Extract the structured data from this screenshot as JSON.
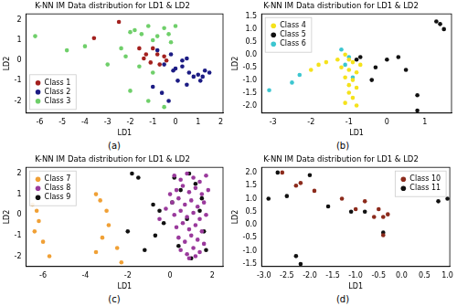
{
  "chart_data": [
    {
      "type": "scatter",
      "title": "K-NN IM Data distribution for LD1 & LD2",
      "x_label": "LD1",
      "y_label": "LD2",
      "caption": "(a)",
      "xlim": [
        -6.6,
        2.1
      ],
      "ylim": [
        -2.6,
        2.3
      ],
      "xticks": [
        -6,
        -5,
        -4,
        -3,
        -2,
        -1,
        0,
        1,
        2
      ],
      "yticks": [
        -2,
        -1,
        0,
        1,
        2
      ],
      "grid": false,
      "legend": "lower left",
      "marker": "circle",
      "series": [
        {
          "name": "Class 1",
          "color": "#a3201e",
          "x": [
            -3.6,
            -2.5,
            -1.6,
            -1.3,
            -1.0,
            -0.8,
            -0.5,
            -1.1,
            -0.7,
            -0.4,
            -1.4
          ],
          "y": [
            1.1,
            1.9,
            0.6,
            0.3,
            0.6,
            0.3,
            0.2,
            -0.1,
            -0.2,
            0.0,
            0.1
          ]
        },
        {
          "name": "Class 2",
          "color": "#1c1c84",
          "x": [
            -0.8,
            -0.5,
            -0.2,
            0.0,
            0.3,
            0.5,
            0.6,
            0.8,
            1.0,
            1.2,
            1.3,
            1.5,
            -1.0,
            -0.6,
            -0.3,
            0.1,
            0.5,
            1.1,
            0.3,
            -0.1
          ],
          "y": [
            0.5,
            -0.2,
            0.3,
            -0.4,
            -0.3,
            0.1,
            -0.6,
            -0.8,
            -0.7,
            -0.8,
            -0.5,
            -0.6,
            -1.3,
            -1.6,
            -2.0,
            -1.0,
            -1.2,
            -1.0,
            0.0,
            -0.5
          ]
        },
        {
          "name": "Class 3",
          "color": "#6fcf6a",
          "x": [
            -6.2,
            -4.8,
            -4.0,
            -3.0,
            -2.0,
            -1.8,
            -1.5,
            -1.2,
            -1.0,
            -0.8,
            -0.5,
            0.0,
            -0.3,
            -2.2,
            -1.6,
            -1.0,
            -2.0,
            -1.2,
            -0.5,
            -2.4,
            -0.2
          ],
          "y": [
            1.2,
            0.5,
            0.7,
            -0.2,
            1.4,
            1.5,
            1.3,
            1.7,
            1.0,
            1.2,
            1.6,
            1.7,
            1.3,
            0.2,
            -0.3,
            -0.6,
            -1.5,
            -2.0,
            -2.3,
            0.6,
            0.9
          ]
        }
      ]
    },
    {
      "type": "scatter",
      "title": "K-NN IM Data distribution for LD1 & LD2",
      "x_label": "LD1",
      "y_label": "LD2",
      "caption": "(b)",
      "xlim": [
        -3.3,
        1.7
      ],
      "ylim": [
        -2.3,
        1.6
      ],
      "xticks": [
        -3,
        -2,
        -1,
        0,
        1
      ],
      "yticks": [
        {
          "value": -2,
          "label": "-2.0"
        },
        -1.5,
        {
          "value": -1,
          "label": "-1.0"
        },
        -0.5,
        {
          "value": 0,
          "label": "0.0"
        },
        0.5,
        {
          "value": 1,
          "label": "1.0"
        },
        1.5
      ],
      "grid": false,
      "legend": "upper left",
      "marker": "circle",
      "series": [
        {
          "name": "Class 4",
          "color": "#f5e21b",
          "x": [
            -2.0,
            -1.8,
            -1.6,
            -1.3,
            -1.1,
            -1.0,
            -0.9,
            -1.0,
            -0.8,
            -1.1,
            -0.9,
            -1.0,
            -0.8,
            -1.0,
            -0.9,
            -0.8,
            -1.1,
            -0.7,
            -1.2
          ],
          "y": [
            -0.6,
            -0.4,
            -0.3,
            -0.2,
            0.0,
            -0.2,
            -0.3,
            -0.6,
            -0.7,
            -0.9,
            -1.0,
            -1.2,
            -1.3,
            -1.5,
            -1.7,
            -2.0,
            -1.9,
            -0.4,
            -0.5
          ]
        },
        {
          "name": "Class 5",
          "color": "#111111",
          "x": [
            -0.7,
            -0.3,
            0.0,
            0.3,
            0.5,
            0.8,
            0.8,
            1.3,
            1.4,
            1.5,
            -0.4,
            -0.8
          ],
          "y": [
            -0.1,
            -0.5,
            -0.2,
            -0.1,
            -0.6,
            -1.6,
            -2.2,
            1.3,
            1.2,
            1.0,
            -1.0,
            -0.2
          ]
        },
        {
          "name": "Class 6",
          "color": "#3cc6d0",
          "x": [
            -3.1,
            -2.5,
            -2.3,
            -1.2,
            -1.0,
            -1.1,
            -0.9
          ],
          "y": [
            -1.4,
            -1.1,
            -0.8,
            0.2,
            -0.1,
            -0.4,
            -0.9
          ]
        }
      ]
    },
    {
      "type": "scatter",
      "title": "K-NN IM Data distribution for LD1 & LD2",
      "x_label": "LD1",
      "y_label": "LD2",
      "caption": "(c)",
      "xlim": [
        -6.8,
        2.5
      ],
      "ylim": [
        -2.5,
        2.3
      ],
      "xticks": [
        -6,
        -4,
        -2,
        0,
        2
      ],
      "yticks": [
        -2,
        -1,
        0,
        1,
        2
      ],
      "grid": false,
      "legend": "upper left",
      "marker": "circle",
      "series": [
        {
          "name": "Class 7",
          "color": "#f0a035",
          "x": [
            -6.5,
            -6.3,
            -6.2,
            -6.4,
            -6.0,
            -5.7,
            -3.5,
            -3.3,
            -3.0,
            -2.9,
            -3.2,
            -2.5,
            -2.3,
            -3.5
          ],
          "y": [
            0.5,
            0.2,
            -0.3,
            -0.8,
            -1.3,
            -2.0,
            1.0,
            0.7,
            0.2,
            -0.5,
            -1.1,
            -1.6,
            -2.3,
            -1.8
          ]
        },
        {
          "name": "Class 8",
          "color": "#9a3a9c",
          "x": [
            0.2,
            0.5,
            0.8,
            1.1,
            1.4,
            1.7,
            0.3,
            0.6,
            0.9,
            1.2,
            1.5,
            1.8,
            0.1,
            0.4,
            0.7,
            1.0,
            1.3,
            1.6,
            0.2,
            0.5,
            0.8,
            1.1,
            1.4,
            1.7,
            0.3,
            0.6,
            0.9,
            1.2,
            1.5,
            0.4,
            0.7,
            1.0,
            1.3,
            1.6,
            0.5,
            0.8,
            1.1,
            1.4,
            0.9,
            1.2,
            -0.2,
            -0.5,
            0.0
          ],
          "y": [
            1.9,
            1.7,
            2.0,
            1.8,
            1.6,
            1.9,
            1.2,
            1.4,
            1.1,
            1.3,
            1.0,
            1.2,
            0.6,
            0.8,
            0.5,
            0.7,
            0.4,
            0.6,
            0.0,
            0.2,
            -0.1,
            0.1,
            -0.2,
            0.0,
            -0.6,
            -0.4,
            -0.7,
            -0.5,
            -0.8,
            -1.1,
            -1.3,
            -1.0,
            -1.2,
            -1.4,
            -1.7,
            -1.9,
            -1.6,
            -1.8,
            -2.1,
            -2.0,
            0.3,
            -0.2,
            1.0
          ]
        },
        {
          "name": "Class 9",
          "color": "#111111",
          "x": [
            -1.8,
            -1.5,
            -0.8,
            -0.5,
            -0.3,
            -0.7,
            0.2,
            0.5,
            0.8,
            1.2,
            1.5,
            1.6,
            1.7,
            0.4,
            1.0,
            -2.0,
            -1.2,
            0.9,
            1.4,
            0.1
          ],
          "y": [
            2.0,
            1.8,
            0.5,
            0.2,
            -0.4,
            -1.0,
            1.8,
            1.2,
            -0.2,
            1.5,
            0.8,
            -0.8,
            -1.7,
            -1.5,
            -2.1,
            -0.8,
            -1.7,
            2.0,
            0.2,
            0.6
          ]
        }
      ]
    },
    {
      "type": "scatter",
      "title": "K-NN IM Data distribution for LD1 & LD2",
      "x_label": "LD1",
      "y_label": "LD2",
      "caption": "(d)",
      "xlim": [
        -3.05,
        1.05
      ],
      "ylim": [
        -1.6,
        2.2
      ],
      "xticks": [
        {
          "value": -3,
          "label": "-3.0"
        },
        -2.5,
        {
          "value": -2,
          "label": "-2.0"
        },
        -1.5,
        {
          "value": -1,
          "label": "-1.0"
        },
        -0.5,
        {
          "value": 0,
          "label": "0.0"
        },
        0.5,
        {
          "value": 1,
          "label": "1.0"
        }
      ],
      "yticks": [
        -1.5,
        {
          "value": -1,
          "label": "-1.0"
        },
        -0.5,
        {
          "value": 0,
          "label": "0.0"
        },
        0.5,
        {
          "value": 1,
          "label": "1.0"
        },
        1.5,
        {
          "value": 2,
          "label": "2.0"
        }
      ],
      "grid": false,
      "legend": "upper right",
      "marker": "circle",
      "series": [
        {
          "name": "Class 10",
          "color": "#8c2b1c",
          "x": [
            -2.6,
            -2.3,
            -2.2,
            -1.9,
            -1.3,
            -1.0,
            -0.8,
            -0.6,
            -0.5,
            -0.4,
            -0.4,
            -0.3
          ],
          "y": [
            2.0,
            1.5,
            1.6,
            1.3,
            1.0,
            0.6,
            0.9,
            0.3,
            0.6,
            0.3,
            -0.4,
            0.4
          ]
        },
        {
          "name": "Class 11",
          "color": "#111111",
          "x": [
            -2.9,
            -2.7,
            -2.0,
            -2.3,
            -2.2,
            -1.6,
            -1.1,
            -0.8,
            -0.4,
            0.8,
            1.0,
            -2.5
          ],
          "y": [
            1.0,
            2.0,
            1.9,
            -1.2,
            -1.5,
            0.7,
            0.5,
            0.5,
            -0.3,
            0.9,
            1.0,
            1.1
          ]
        }
      ]
    }
  ]
}
